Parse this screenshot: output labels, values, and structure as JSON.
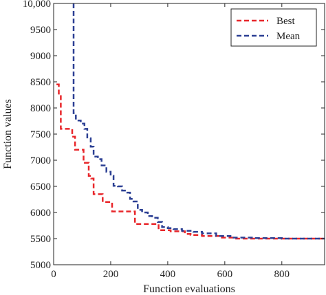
{
  "chart_data": {
    "type": "line",
    "title": "",
    "xlabel": "Function evaluations",
    "ylabel": "Function values",
    "xlim": [
      0,
      950
    ],
    "ylim": [
      5000,
      10000
    ],
    "x_ticks": [
      0,
      200,
      400,
      600,
      800
    ],
    "x_tick_labels": [
      "0",
      "200",
      "400",
      "600",
      "800"
    ],
    "y_ticks": [
      5000,
      5500,
      6000,
      6500,
      7000,
      7500,
      8000,
      8500,
      9000,
      9500,
      10000
    ],
    "y_tick_labels": [
      "5000",
      "5500",
      "6000",
      "6500",
      "7000",
      "7500",
      "8000",
      "8500",
      "9000",
      "9500",
      "10,000"
    ],
    "grid": false,
    "legend_position": "top-right",
    "series": [
      {
        "name": "Best",
        "color": "#e8262a",
        "style": "dashed",
        "points": [
          [
            10,
            8450
          ],
          [
            18,
            8250
          ],
          [
            25,
            7600
          ],
          [
            55,
            7600
          ],
          [
            65,
            7450
          ],
          [
            75,
            7200
          ],
          [
            100,
            7200
          ],
          [
            105,
            6950
          ],
          [
            118,
            6950
          ],
          [
            123,
            6700
          ],
          [
            132,
            6650
          ],
          [
            140,
            6350
          ],
          [
            165,
            6350
          ],
          [
            172,
            6200
          ],
          [
            200,
            6200
          ],
          [
            205,
            6020
          ],
          [
            280,
            6020
          ],
          [
            285,
            5780
          ],
          [
            350,
            5780
          ],
          [
            368,
            5660
          ],
          [
            410,
            5640
          ],
          [
            440,
            5640
          ],
          [
            460,
            5590
          ],
          [
            480,
            5570
          ],
          [
            520,
            5550
          ],
          [
            580,
            5520
          ],
          [
            640,
            5500
          ],
          [
            700,
            5500
          ],
          [
            800,
            5500
          ],
          [
            950,
            5500
          ]
        ]
      },
      {
        "name": "Mean",
        "color": "#2b3f93",
        "style": "dashed",
        "points": [
          [
            70,
            10000
          ],
          [
            70,
            7900
          ],
          [
            78,
            7760
          ],
          [
            95,
            7700
          ],
          [
            108,
            7600
          ],
          [
            118,
            7420
          ],
          [
            130,
            7260
          ],
          [
            140,
            7070
          ],
          [
            155,
            7020
          ],
          [
            168,
            6900
          ],
          [
            185,
            6780
          ],
          [
            200,
            6700
          ],
          [
            210,
            6510
          ],
          [
            225,
            6500
          ],
          [
            240,
            6420
          ],
          [
            255,
            6380
          ],
          [
            268,
            6260
          ],
          [
            280,
            6210
          ],
          [
            295,
            6050
          ],
          [
            310,
            6000
          ],
          [
            330,
            5930
          ],
          [
            345,
            5900
          ],
          [
            365,
            5820
          ],
          [
            380,
            5720
          ],
          [
            400,
            5700
          ],
          [
            420,
            5680
          ],
          [
            450,
            5650
          ],
          [
            490,
            5630
          ],
          [
            520,
            5600
          ],
          [
            570,
            5550
          ],
          [
            620,
            5520
          ],
          [
            700,
            5510
          ],
          [
            800,
            5500
          ],
          [
            950,
            5500
          ]
        ]
      }
    ]
  }
}
